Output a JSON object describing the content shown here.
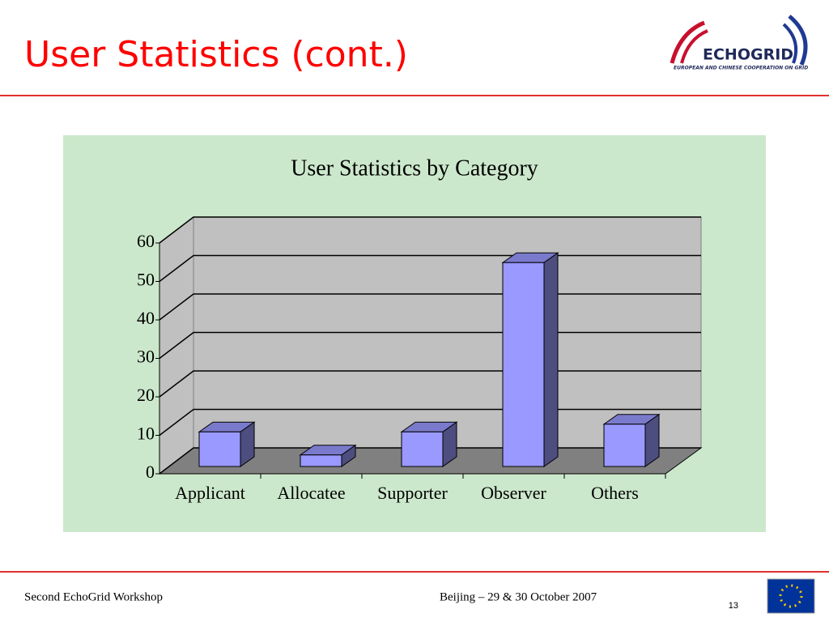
{
  "header": {
    "title": "User Statistics (cont.)",
    "logo_text": "ECHOGRID",
    "logo_tagline": "EUROPEAN AND CHINESE COOPERATION ON GRID"
  },
  "chart_data": {
    "type": "bar3d",
    "title": "User Statistics by Category",
    "categories": [
      "Applicant",
      "Allocatee",
      "Supporter",
      "Observer",
      "Others"
    ],
    "values": [
      9,
      3,
      9,
      53,
      11
    ],
    "color": "#9999ff",
    "ylim": [
      0,
      60
    ],
    "yticks": [
      0,
      10,
      20,
      30,
      40,
      50,
      60
    ],
    "grid": true
  },
  "footer": {
    "left": "Second EchoGrid Workshop",
    "center": "Beijing – 29 & 30 October 2007",
    "page": "13"
  }
}
